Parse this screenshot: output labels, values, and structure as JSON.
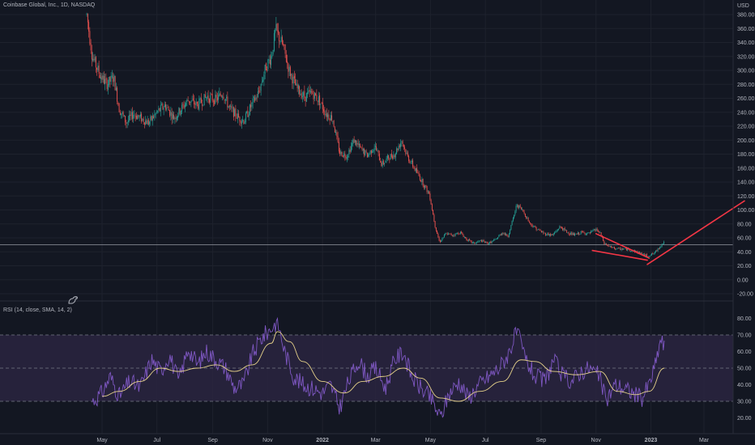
{
  "header": {
    "symbol_title": "Coinbase Global, Inc., 1D, NASDAQ",
    "rsi_label": "RSI (14, close, SMA, 14, 2)"
  },
  "logo_icon": "tradingview-dino-icon",
  "colors": {
    "background": "#131722",
    "up": "#26a69a",
    "down": "#ef5350",
    "trendline": "#f23645",
    "rsi_line": "#7e57c2",
    "rsi_ma": "#e6d28a",
    "rsi_band": "#2a2440",
    "grid": "#1e222d",
    "axis_text": "#b2b5be"
  },
  "chart_data": [
    {
      "type": "candlestick",
      "title": "Coinbase Global, Inc., 1D, NASDAQ",
      "unit_label": "USD",
      "ylim": [
        -30,
        400
      ],
      "y_ticks": [
        "380.00",
        "360.00",
        "340.00",
        "320.00",
        "300.00",
        "280.00",
        "260.00",
        "240.00",
        "220.00",
        "200.00",
        "180.00",
        "160.00",
        "140.00",
        "120.00",
        "100.00",
        "80.00",
        "60.00",
        "40.00",
        "20.00",
        "0.00",
        "-20.00"
      ],
      "x_ticks": [
        "May",
        "Jul",
        "Sep",
        "Nov",
        "2022",
        "Mar",
        "May",
        "Jul",
        "Sep",
        "Nov",
        "2023",
        "Mar"
      ],
      "horizontal_line": 50,
      "series": [
        {
          "name": "price",
          "path": [
            [
              "2021-04-14",
              380
            ],
            [
              "2021-04-20",
              320
            ],
            [
              "2021-04-28",
              295
            ],
            [
              "2021-05-06",
              280
            ],
            [
              "2021-05-14",
              290
            ],
            [
              "2021-05-20",
              245
            ],
            [
              "2021-05-28",
              225
            ],
            [
              "2021-06-05",
              238
            ],
            [
              "2021-06-12",
              232
            ],
            [
              "2021-06-22",
              225
            ],
            [
              "2021-07-01",
              240
            ],
            [
              "2021-07-10",
              250
            ],
            [
              "2021-07-20",
              232
            ],
            [
              "2021-07-28",
              245
            ],
            [
              "2021-08-05",
              258
            ],
            [
              "2021-08-15",
              250
            ],
            [
              "2021-08-25",
              262
            ],
            [
              "2021-09-05",
              258
            ],
            [
              "2021-09-12",
              268
            ],
            [
              "2021-09-20",
              245
            ],
            [
              "2021-09-30",
              232
            ],
            [
              "2021-10-06",
              228
            ],
            [
              "2021-10-14",
              250
            ],
            [
              "2021-10-22",
              268
            ],
            [
              "2021-10-30",
              305
            ],
            [
              "2021-11-05",
              320
            ],
            [
              "2021-11-10",
              358
            ],
            [
              "2021-11-18",
              335
            ],
            [
              "2021-11-25",
              300
            ],
            [
              "2021-12-03",
              275
            ],
            [
              "2021-12-12",
              262
            ],
            [
              "2021-12-20",
              268
            ],
            [
              "2021-12-28",
              258
            ],
            [
              "2022-01-05",
              238
            ],
            [
              "2022-01-12",
              232
            ],
            [
              "2022-01-20",
              182
            ],
            [
              "2022-01-28",
              178
            ],
            [
              "2022-02-05",
              200
            ],
            [
              "2022-02-12",
              188
            ],
            [
              "2022-02-20",
              178
            ],
            [
              "2022-02-28",
              192
            ],
            [
              "2022-03-08",
              165
            ],
            [
              "2022-03-15",
              175
            ],
            [
              "2022-03-22",
              180
            ],
            [
              "2022-03-30",
              200
            ],
            [
              "2022-04-05",
              178
            ],
            [
              "2022-04-14",
              158
            ],
            [
              "2022-04-22",
              140
            ],
            [
              "2022-04-30",
              122
            ],
            [
              "2022-05-06",
              78
            ],
            [
              "2022-05-11",
              54
            ],
            [
              "2022-05-18",
              66
            ],
            [
              "2022-05-26",
              64
            ],
            [
              "2022-06-03",
              68
            ],
            [
              "2022-06-10",
              58
            ],
            [
              "2022-06-18",
              52
            ],
            [
              "2022-06-26",
              56
            ],
            [
              "2022-07-04",
              52
            ],
            [
              "2022-07-12",
              57
            ],
            [
              "2022-07-20",
              68
            ],
            [
              "2022-07-26",
              62
            ],
            [
              "2022-08-01",
              88
            ],
            [
              "2022-08-05",
              108
            ],
            [
              "2022-08-12",
              98
            ],
            [
              "2022-08-20",
              80
            ],
            [
              "2022-08-28",
              72
            ],
            [
              "2022-09-05",
              66
            ],
            [
              "2022-09-14",
              64
            ],
            [
              "2022-09-22",
              76
            ],
            [
              "2022-09-30",
              68
            ],
            [
              "2022-10-08",
              64
            ],
            [
              "2022-10-16",
              68
            ],
            [
              "2022-10-24",
              66
            ],
            [
              "2022-11-01",
              72
            ],
            [
              "2022-11-06",
              66
            ],
            [
              "2022-11-10",
              52
            ],
            [
              "2022-11-18",
              46
            ],
            [
              "2022-11-26",
              44
            ],
            [
              "2022-12-04",
              44
            ],
            [
              "2022-12-12",
              42
            ],
            [
              "2022-12-20",
              38
            ],
            [
              "2022-12-28",
              34
            ],
            [
              "2023-01-05",
              38
            ],
            [
              "2023-01-10",
              46
            ],
            [
              "2023-01-16",
              55
            ]
          ]
        }
      ],
      "trendlines": [
        {
          "name": "upper-wedge-line",
          "from": [
            "2022-11-01",
            66
          ],
          "to": [
            "2022-12-30",
            31
          ]
        },
        {
          "name": "lower-wedge-line",
          "from": [
            "2022-10-28",
            42
          ],
          "to": [
            "2022-12-28",
            28
          ]
        },
        {
          "name": "breakout-line",
          "from": [
            "2022-12-28",
            22
          ],
          "to": [
            "2023-04-15",
            113
          ]
        }
      ]
    },
    {
      "type": "line",
      "title": "RSI (14, close, SMA, 14, 2)",
      "ylim": [
        13,
        82
      ],
      "y_ticks": [
        "80.00",
        "70.00",
        "60.00",
        "50.00",
        "40.00",
        "30.00",
        "20.00"
      ],
      "bands": [
        30,
        50,
        70
      ],
      "series": [
        {
          "name": "RSI",
          "values": [
            [
              "2021-04-20",
              30
            ],
            [
              "2021-05-01",
              35
            ],
            [
              "2021-05-10",
              45
            ],
            [
              "2021-05-20",
              33
            ],
            [
              "2021-06-01",
              42
            ],
            [
              "2021-06-12",
              38
            ],
            [
              "2021-06-25",
              55
            ],
            [
              "2021-07-05",
              48
            ],
            [
              "2021-07-15",
              58
            ],
            [
              "2021-07-25",
              42
            ],
            [
              "2021-08-05",
              62
            ],
            [
              "2021-08-15",
              52
            ],
            [
              "2021-08-25",
              60
            ],
            [
              "2021-09-05",
              55
            ],
            [
              "2021-09-15",
              50
            ],
            [
              "2021-09-25",
              38
            ],
            [
              "2021-10-05",
              40
            ],
            [
              "2021-10-15",
              58
            ],
            [
              "2021-10-25",
              68
            ],
            [
              "2021-11-05",
              74
            ],
            [
              "2021-11-12",
              78
            ],
            [
              "2021-11-20",
              60
            ],
            [
              "2021-11-30",
              45
            ],
            [
              "2021-12-10",
              40
            ],
            [
              "2021-12-20",
              38
            ],
            [
              "2022-01-01",
              35
            ],
            [
              "2022-01-10",
              40
            ],
            [
              "2022-01-20",
              26
            ],
            [
              "2022-01-30",
              42
            ],
            [
              "2022-02-10",
              55
            ],
            [
              "2022-02-20",
              45
            ],
            [
              "2022-03-01",
              50
            ],
            [
              "2022-03-12",
              38
            ],
            [
              "2022-03-22",
              55
            ],
            [
              "2022-04-01",
              60
            ],
            [
              "2022-04-10",
              45
            ],
            [
              "2022-04-20",
              38
            ],
            [
              "2022-05-01",
              32
            ],
            [
              "2022-05-12",
              20
            ],
            [
              "2022-05-22",
              35
            ],
            [
              "2022-06-02",
              42
            ],
            [
              "2022-06-12",
              32
            ],
            [
              "2022-06-24",
              40
            ],
            [
              "2022-07-05",
              45
            ],
            [
              "2022-07-16",
              50
            ],
            [
              "2022-07-26",
              58
            ],
            [
              "2022-08-05",
              72
            ],
            [
              "2022-08-15",
              55
            ],
            [
              "2022-08-25",
              45
            ],
            [
              "2022-09-05",
              42
            ],
            [
              "2022-09-15",
              55
            ],
            [
              "2022-09-25",
              45
            ],
            [
              "2022-10-05",
              42
            ],
            [
              "2022-10-15",
              48
            ],
            [
              "2022-10-25",
              50
            ],
            [
              "2022-11-05",
              45
            ],
            [
              "2022-11-12",
              30
            ],
            [
              "2022-11-22",
              40
            ],
            [
              "2022-12-02",
              38
            ],
            [
              "2022-12-12",
              35
            ],
            [
              "2022-12-22",
              32
            ],
            [
              "2022-12-30",
              40
            ],
            [
              "2023-01-06",
              52
            ],
            [
              "2023-01-12",
              68
            ],
            [
              "2023-01-16",
              62
            ]
          ]
        },
        {
          "name": "RSI-based MA",
          "values": [
            [
              "2021-05-01",
              33
            ],
            [
              "2021-05-20",
              36
            ],
            [
              "2021-06-12",
              42
            ],
            [
              "2021-07-05",
              50
            ],
            [
              "2021-07-25",
              48
            ],
            [
              "2021-08-15",
              50
            ],
            [
              "2021-09-05",
              52
            ],
            [
              "2021-09-25",
              48
            ],
            [
              "2021-10-15",
              52
            ],
            [
              "2021-11-05",
              65
            ],
            [
              "2021-11-12",
              72
            ],
            [
              "2021-11-25",
              66
            ],
            [
              "2021-12-10",
              54
            ],
            [
              "2022-01-01",
              42
            ],
            [
              "2022-01-25",
              35
            ],
            [
              "2022-02-15",
              42
            ],
            [
              "2022-03-10",
              45
            ],
            [
              "2022-04-01",
              50
            ],
            [
              "2022-04-20",
              44
            ],
            [
              "2022-05-12",
              32
            ],
            [
              "2022-06-01",
              30
            ],
            [
              "2022-06-25",
              36
            ],
            [
              "2022-07-20",
              42
            ],
            [
              "2022-08-10",
              55
            ],
            [
              "2022-08-25",
              54
            ],
            [
              "2022-09-15",
              48
            ],
            [
              "2022-10-10",
              46
            ],
            [
              "2022-11-05",
              48
            ],
            [
              "2022-11-25",
              36
            ],
            [
              "2022-12-15",
              34
            ],
            [
              "2022-12-30",
              36
            ],
            [
              "2023-01-16",
              50
            ]
          ]
        }
      ]
    }
  ]
}
